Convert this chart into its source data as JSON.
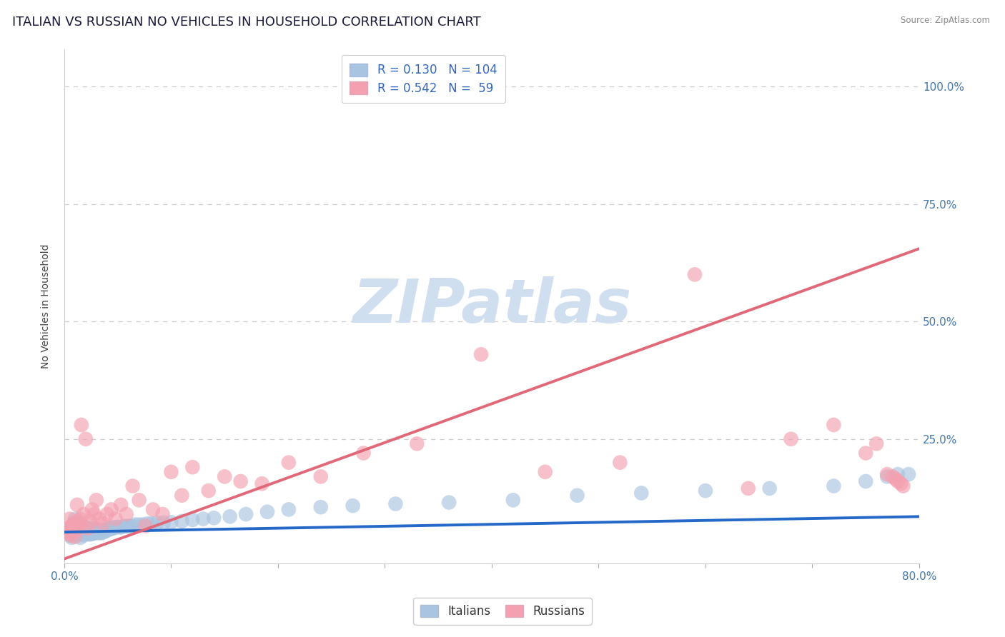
{
  "title": "ITALIAN VS RUSSIAN NO VEHICLES IN HOUSEHOLD CORRELATION CHART",
  "source_text": "Source: ZipAtlas.com",
  "ylabel": "No Vehicles in Household",
  "xlim": [
    0.0,
    0.8
  ],
  "ylim": [
    -0.015,
    1.08
  ],
  "italian_R": 0.13,
  "italian_N": 104,
  "russian_R": 0.542,
  "russian_N": 59,
  "italian_color": "#a8c4e0",
  "russian_color": "#f4a0b0",
  "italian_line_color": "#2468c8",
  "russian_line_color": "#e06878",
  "title_fontsize": 13,
  "axis_label_fontsize": 10,
  "tick_fontsize": 11,
  "legend_fontsize": 12,
  "watermark_text": "ZIPatlas",
  "watermark_color": "#d0dff0",
  "background_color": "#ffffff",
  "grid_color": "#cccccc",
  "italian_x": [
    0.003,
    0.004,
    0.005,
    0.006,
    0.007,
    0.008,
    0.009,
    0.01,
    0.01,
    0.01,
    0.011,
    0.011,
    0.012,
    0.012,
    0.013,
    0.013,
    0.014,
    0.014,
    0.015,
    0.015,
    0.015,
    0.016,
    0.016,
    0.017,
    0.017,
    0.018,
    0.018,
    0.019,
    0.019,
    0.02,
    0.02,
    0.02,
    0.021,
    0.021,
    0.022,
    0.022,
    0.023,
    0.023,
    0.024,
    0.024,
    0.025,
    0.025,
    0.026,
    0.026,
    0.027,
    0.027,
    0.028,
    0.029,
    0.03,
    0.03,
    0.031,
    0.032,
    0.033,
    0.034,
    0.035,
    0.036,
    0.037,
    0.038,
    0.039,
    0.04,
    0.041,
    0.042,
    0.043,
    0.044,
    0.045,
    0.046,
    0.048,
    0.05,
    0.052,
    0.054,
    0.056,
    0.058,
    0.06,
    0.063,
    0.066,
    0.07,
    0.074,
    0.078,
    0.082,
    0.087,
    0.093,
    0.1,
    0.11,
    0.12,
    0.13,
    0.14,
    0.155,
    0.17,
    0.19,
    0.21,
    0.24,
    0.27,
    0.31,
    0.36,
    0.42,
    0.48,
    0.54,
    0.6,
    0.66,
    0.72,
    0.75,
    0.77,
    0.78,
    0.79
  ],
  "italian_y": [
    0.05,
    0.06,
    0.045,
    0.055,
    0.04,
    0.065,
    0.05,
    0.06,
    0.07,
    0.08,
    0.055,
    0.065,
    0.045,
    0.07,
    0.05,
    0.06,
    0.055,
    0.065,
    0.04,
    0.055,
    0.07,
    0.048,
    0.062,
    0.05,
    0.065,
    0.045,
    0.058,
    0.052,
    0.06,
    0.048,
    0.055,
    0.063,
    0.05,
    0.06,
    0.048,
    0.057,
    0.05,
    0.06,
    0.047,
    0.055,
    0.05,
    0.058,
    0.048,
    0.055,
    0.052,
    0.06,
    0.05,
    0.055,
    0.05,
    0.058,
    0.052,
    0.055,
    0.05,
    0.055,
    0.05,
    0.055,
    0.052,
    0.055,
    0.058,
    0.055,
    0.058,
    0.06,
    0.058,
    0.06,
    0.062,
    0.06,
    0.062,
    0.063,
    0.062,
    0.063,
    0.065,
    0.064,
    0.065,
    0.065,
    0.068,
    0.068,
    0.068,
    0.07,
    0.07,
    0.072,
    0.072,
    0.073,
    0.075,
    0.078,
    0.08,
    0.082,
    0.085,
    0.09,
    0.095,
    0.1,
    0.105,
    0.108,
    0.112,
    0.115,
    0.12,
    0.13,
    0.135,
    0.14,
    0.145,
    0.15,
    0.16,
    0.17,
    0.175,
    0.175
  ],
  "russian_x": [
    0.003,
    0.004,
    0.005,
    0.006,
    0.007,
    0.008,
    0.009,
    0.01,
    0.011,
    0.012,
    0.013,
    0.014,
    0.015,
    0.016,
    0.018,
    0.02,
    0.022,
    0.024,
    0.026,
    0.028,
    0.03,
    0.033,
    0.036,
    0.04,
    0.044,
    0.048,
    0.053,
    0.058,
    0.064,
    0.07,
    0.076,
    0.083,
    0.092,
    0.1,
    0.11,
    0.12,
    0.135,
    0.15,
    0.165,
    0.185,
    0.21,
    0.24,
    0.28,
    0.33,
    0.39,
    0.45,
    0.52,
    0.59,
    0.64,
    0.68,
    0.72,
    0.75,
    0.76,
    0.77,
    0.775,
    0.778,
    0.78,
    0.783,
    0.785
  ],
  "russian_y": [
    0.05,
    0.06,
    0.08,
    0.045,
    0.055,
    0.07,
    0.065,
    0.042,
    0.055,
    0.11,
    0.075,
    0.065,
    0.08,
    0.28,
    0.09,
    0.25,
    0.06,
    0.075,
    0.1,
    0.09,
    0.12,
    0.08,
    0.07,
    0.09,
    0.1,
    0.08,
    0.11,
    0.09,
    0.15,
    0.12,
    0.065,
    0.1,
    0.09,
    0.18,
    0.13,
    0.19,
    0.14,
    0.17,
    0.16,
    0.155,
    0.2,
    0.17,
    0.22,
    0.24,
    0.43,
    0.18,
    0.2,
    0.6,
    0.145,
    0.25,
    0.28,
    0.22,
    0.24,
    0.175,
    0.17,
    0.165,
    0.16,
    0.155,
    0.15
  ],
  "russian_trend_x0": 0.0,
  "russian_trend_y0": -0.005,
  "russian_trend_x1": 0.8,
  "russian_trend_y1": 0.655,
  "italian_trend_x0": 0.0,
  "italian_trend_y0": 0.052,
  "italian_trend_x1": 0.8,
  "italian_trend_y1": 0.085
}
